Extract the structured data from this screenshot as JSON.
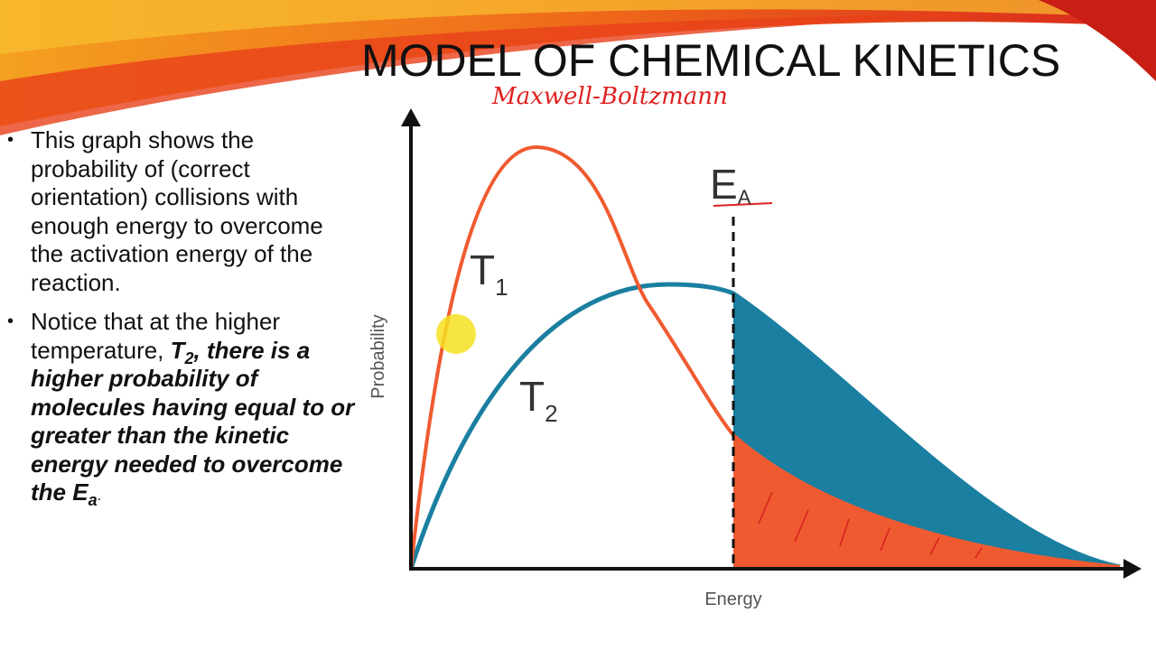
{
  "header": {
    "title": "MODEL OF CHEMICAL KINETICS",
    "annotation": "Maxwell-Boltzmann"
  },
  "bullets": [
    {
      "parts": [
        "This graph shows the probability of (correct orientation) collisions with enough energy to overcome the activation energy of the reaction."
      ]
    },
    {
      "parts": [
        "Notice that at the higher temperature, ",
        "T",
        "2",
        ", there is a higher probability of molecules having equal to or greater than the kinetic energy needed to overcome the E",
        "a",
        "."
      ]
    }
  ],
  "graph": {
    "y_label": "Probability",
    "x_label": "Energy",
    "curves": [
      {
        "label": "T",
        "subscript": "1"
      },
      {
        "label": "T",
        "subscript": "2"
      }
    ],
    "threshold": {
      "label": "E",
      "subscript": "A"
    }
  }
}
